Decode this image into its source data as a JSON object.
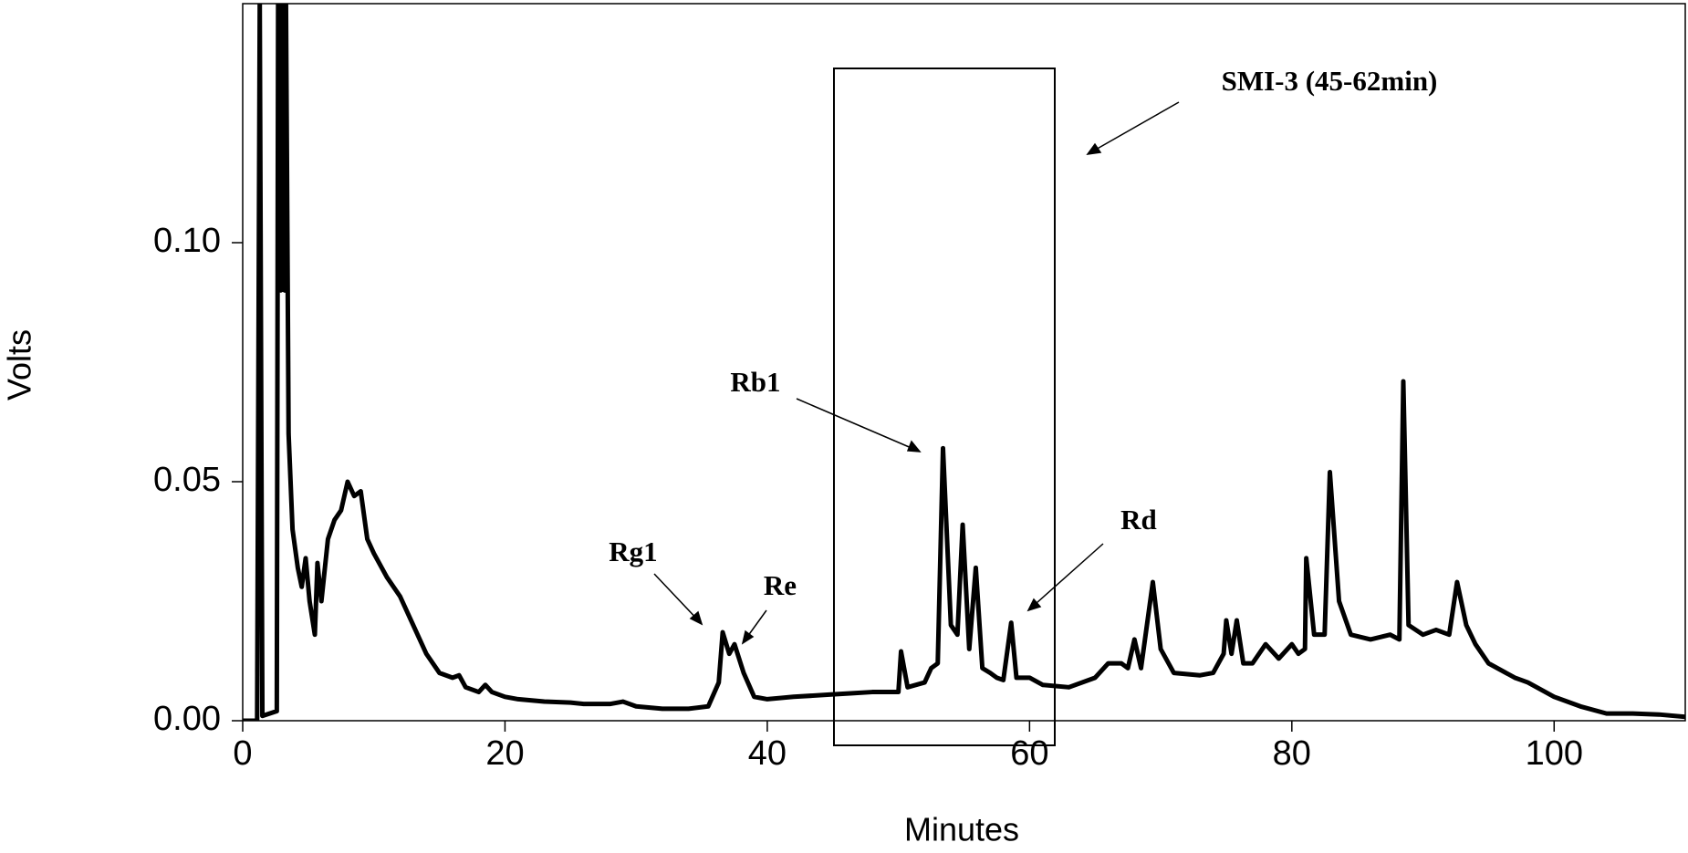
{
  "chart_data": {
    "type": "line",
    "x_label": "Minutes",
    "y_label": "Volts",
    "annotations": [
      "SMI-3 (45-62min)",
      "Rb1",
      "Rg1",
      "Re",
      "Rd"
    ],
    "xlim": [
      0,
      110
    ],
    "ylim": [
      0,
      0.15
    ],
    "xticks": [
      0,
      20,
      40,
      60,
      80,
      100
    ],
    "yticks": [
      {
        "value": 0,
        "label": "0.00"
      },
      {
        "value": 0.05,
        "label": "0.05"
      },
      {
        "value": 0.1,
        "label": "0.10"
      }
    ],
    "color": "#000000",
    "x": [
      0,
      1.1,
      1.3,
      1.5,
      2.6,
      2.7,
      2.9,
      3.0,
      3.2,
      3.3,
      3.5,
      3.8,
      4.2,
      4.5,
      4.8,
      5.1,
      5.5,
      5.7,
      6.0,
      6.5,
      7.0,
      7.5,
      8.0,
      8.5,
      9.0,
      9.5,
      10,
      11,
      12,
      13,
      14,
      15,
      16,
      16.5,
      17,
      18,
      18.5,
      19,
      20,
      21,
      23,
      25,
      26,
      28,
      29,
      30,
      32,
      34,
      35.5,
      36.3,
      36.6,
      37.1,
      37.5,
      38.2,
      39,
      40,
      42,
      45,
      48,
      50,
      50.2,
      50.7,
      52,
      52.5,
      53,
      53.4,
      54,
      54.5,
      54.9,
      55.4,
      55.9,
      56.4,
      57,
      57.5,
      58,
      58.6,
      59,
      60,
      61,
      63,
      65,
      66,
      67,
      67.5,
      68,
      68.5,
      69.4,
      70,
      71,
      73,
      74,
      74.8,
      75,
      75.4,
      75.8,
      76.3,
      77,
      78,
      79,
      80,
      80.5,
      81,
      81.1,
      81.7,
      82.5,
      82.9,
      83.6,
      84.5,
      86,
      87.5,
      88.2,
      88.5,
      88.9,
      90,
      91,
      92,
      92.6,
      93.3,
      94,
      95,
      97,
      97.5,
      98,
      100,
      102,
      104,
      106,
      108,
      110
    ],
    "values": [
      0,
      0,
      0.15,
      0.001,
      0.002,
      0.15,
      0.09,
      0.15,
      0.09,
      0.15,
      0.06,
      0.04,
      0.032,
      0.028,
      0.034,
      0.025,
      0.018,
      0.033,
      0.025,
      0.038,
      0.042,
      0.044,
      0.05,
      0.047,
      0.048,
      0.038,
      0.035,
      0.03,
      0.026,
      0.02,
      0.014,
      0.01,
      0.009,
      0.0095,
      0.007,
      0.006,
      0.0075,
      0.006,
      0.005,
      0.0045,
      0.004,
      0.0038,
      0.0035,
      0.0035,
      0.004,
      0.003,
      0.0025,
      0.0025,
      0.003,
      0.008,
      0.0185,
      0.014,
      0.016,
      0.01,
      0.005,
      0.0045,
      0.005,
      0.0055,
      0.006,
      0.006,
      0.0145,
      0.007,
      0.008,
      0.011,
      0.012,
      0.057,
      0.02,
      0.018,
      0.041,
      0.015,
      0.032,
      0.011,
      0.01,
      0.009,
      0.0085,
      0.0205,
      0.009,
      0.009,
      0.0075,
      0.007,
      0.009,
      0.012,
      0.012,
      0.011,
      0.017,
      0.011,
      0.029,
      0.015,
      0.01,
      0.0095,
      0.01,
      0.014,
      0.021,
      0.014,
      0.021,
      0.012,
      0.012,
      0.016,
      0.013,
      0.016,
      0.014,
      0.015,
      0.034,
      0.018,
      0.018,
      0.052,
      0.025,
      0.018,
      0.017,
      0.018,
      0.017,
      0.071,
      0.02,
      0.018,
      0.019,
      0.018,
      0.029,
      0.02,
      0.016,
      0.012,
      0.009,
      0.0085,
      0.008,
      0.005,
      0.003,
      0.0015,
      0.0015,
      0.0013,
      0.0008
    ]
  }
}
